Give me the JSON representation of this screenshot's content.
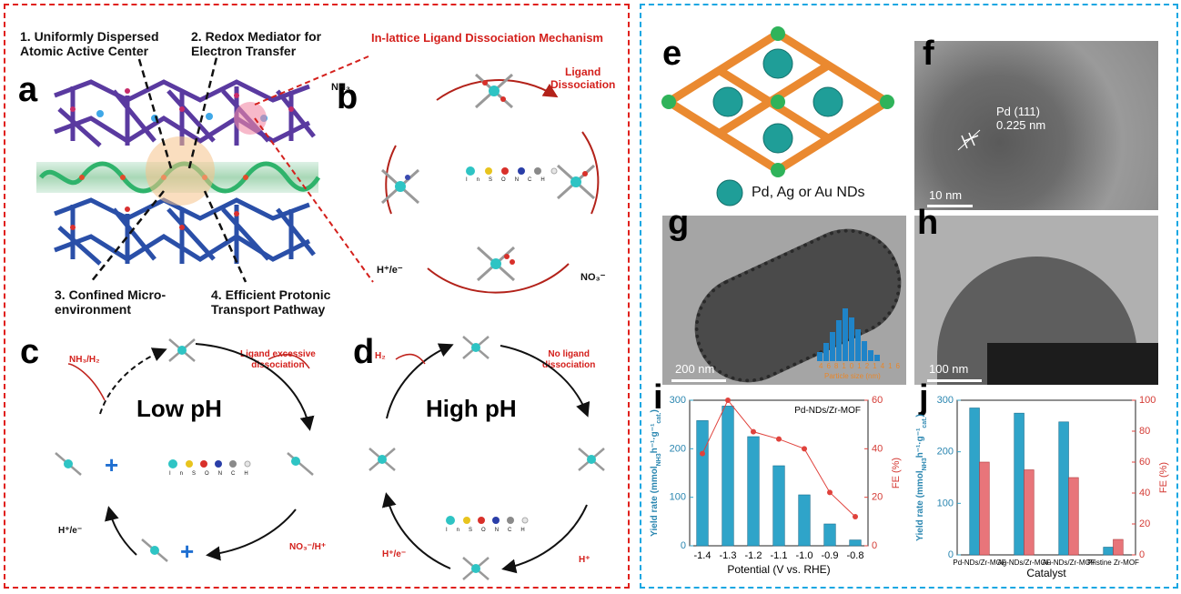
{
  "labels": {
    "a": "a",
    "b": "b",
    "c": "c",
    "d": "d",
    "e": "e",
    "f": "f",
    "g": "g",
    "h": "h",
    "i": "i",
    "j": "j"
  },
  "panel_a": {
    "note1_l1": "1. Uniformly Dispersed",
    "note1_l2": "Atomic Active Center",
    "note2_l1": "2. Redox Mediator for",
    "note2_l2": "Electron Transfer",
    "note3_l1": "3. Confined Micro-",
    "note3_l2": "environment",
    "note4_l1": "4. Efficient Protonic",
    "note4_l2": "Transport Pathway"
  },
  "panel_b": {
    "title": "In-lattice Ligand Dissociation Mechanism",
    "ligand_l1": "Ligand",
    "ligand_l2": "Dissociation",
    "nh3": "NH₃",
    "no3": "NO₃⁻",
    "h": "H⁺/e⁻",
    "legend": [
      "In",
      "S",
      "O",
      "N",
      "C",
      "H"
    ]
  },
  "panel_c": {
    "title": "Low pH",
    "nh3h2": "NH₃/H₂",
    "exc_l1": "Ligand excessive",
    "exc_l2": "dissociation",
    "h": "H⁺/e⁻",
    "no3h": "NO₃⁻/H⁺",
    "legend": [
      "In",
      "S",
      "O",
      "N",
      "C",
      "H"
    ]
  },
  "panel_d": {
    "title": "High pH",
    "h2": "H₂",
    "no_l1": "No ligand",
    "no_l2": "dissociation",
    "h": "H⁺/e⁻",
    "hplus": "H⁺",
    "legend": [
      "In",
      "S",
      "O",
      "N",
      "C",
      "H"
    ]
  },
  "panel_e": {
    "legend": "Pd, Ag or Au NDs"
  },
  "panel_f": {
    "lattice_l1": "Pd (111)",
    "lattice_l2": "0.225 nm",
    "scale": "10 nm"
  },
  "panel_g": {
    "scale": "200 nm",
    "hist_xlabel": "Particle size (nm)",
    "hist_ticks": [
      "4",
      "6",
      "8",
      "10",
      "12",
      "14",
      "16"
    ]
  },
  "panel_h": {
    "scale": "100 nm"
  },
  "chart_data": [
    {
      "type": "bar",
      "panel": "i",
      "annotation": "Pd-NDs/Zr-MOF",
      "categories": [
        "-1.4",
        "-1.3",
        "-1.2",
        "-1.1",
        "-1.0",
        "-0.9",
        "-0.8"
      ],
      "series": [
        {
          "values": [
            258,
            288,
            225,
            165,
            105,
            45,
            12
          ],
          "color": "#2fa4c9"
        },
        {
          "values": [
            38,
            60,
            47,
            44,
            40,
            22,
            12
          ],
          "color": "#e0423c"
        }
      ],
      "xlabel": "Potential (V vs. RHE)",
      "ylabel": "Yield rate (mmol NH3 h-1 g-1 cat.)",
      "ylabel_main": "Yield rate (mmol",
      "ylabel_tail": "h⁻¹·g⁻¹",
      "ylabel_sub1": "NH3",
      "ylabel_sub2": "cat.",
      "ylabel_end": ")",
      "y2label": "FE (%)",
      "ylim": [
        0,
        300
      ],
      "y2lim": [
        0,
        60
      ],
      "yticks": [
        "0",
        "100",
        "200",
        "300"
      ],
      "y2ticks": [
        "0",
        "20",
        "40",
        "60"
      ]
    },
    {
      "type": "bar",
      "panel": "j",
      "categories": [
        "Pd-NDs/Zr-MOF",
        "Ag-NDs/Zr-MOF",
        "Au-NDs/Zr-MOF",
        "Pristine Zr-MOF"
      ],
      "series": [
        {
          "values": [
            285,
            275,
            258,
            15
          ],
          "color": "#2fa4c9"
        },
        {
          "values": [
            60,
            55,
            50,
            10
          ],
          "color": "#e8757a"
        }
      ],
      "xlabel": "Catalyst",
      "ylabel": "Yield rate (mmol NH3 h-1 g-1 cat.)",
      "ylabel_main": "Yield rate (mmol",
      "ylabel_tail": "h⁻¹·g⁻¹",
      "ylabel_sub1": "NH3",
      "ylabel_sub2": "cat.",
      "ylabel_end": ")",
      "y2label": "FE (%)",
      "ylim": [
        0,
        300
      ],
      "y2lim": [
        0,
        100
      ],
      "yticks": [
        "0",
        "100",
        "200",
        "300"
      ],
      "y2ticks": [
        "0",
        "20",
        "40",
        "60",
        "80",
        "100"
      ]
    }
  ],
  "colors": {
    "left_border": "#e0201c",
    "right_border": "#1aa7e2",
    "in_atom": "#2ec4c4",
    "o_atom": "#d8302a",
    "c_atom": "#b8b8b8",
    "arrow_red": "#c0221c"
  }
}
